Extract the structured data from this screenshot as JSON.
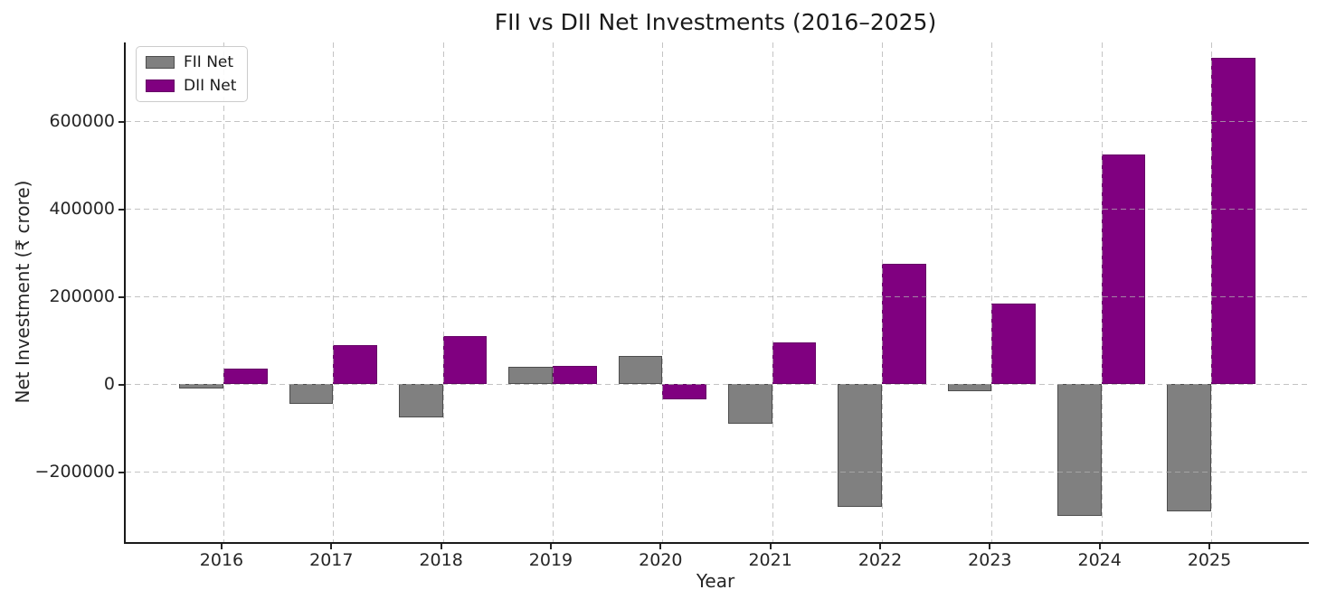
{
  "chart_data": {
    "type": "bar",
    "title": "FII vs DII Net Investments (2016–2025)",
    "xlabel": "Year",
    "ylabel": "Net Investment (₹ crore)",
    "categories": [
      "2016",
      "2017",
      "2018",
      "2019",
      "2020",
      "2021",
      "2022",
      "2023",
      "2024",
      "2025"
    ],
    "series": [
      {
        "name": "FII Net",
        "color": "#808080",
        "edge_color": "rgba(0,0,0,0.4)",
        "values": [
          -10000,
          -45000,
          -75000,
          40000,
          65000,
          -90000,
          -280000,
          -15000,
          -300000,
          -290000
        ]
      },
      {
        "name": "DII Net",
        "color": "#800080",
        "edge_color": "rgba(0,0,0,0.2)",
        "values": [
          35000,
          90000,
          110000,
          42000,
          -35000,
          95000,
          275000,
          185000,
          525000,
          745000
        ]
      }
    ],
    "ylim": [
      -360000,
      780000
    ],
    "yticks": [
      -200000,
      0,
      200000,
      400000,
      600000
    ],
    "ytick_labels": [
      "−200000",
      "0",
      "200000",
      "400000",
      "600000"
    ],
    "grid": true,
    "grid_linestyle": "dashed",
    "grid_color": "#b0b0b0",
    "legend_position": "upper left",
    "fii_color": "#808080",
    "dii_color": "#800080"
  }
}
